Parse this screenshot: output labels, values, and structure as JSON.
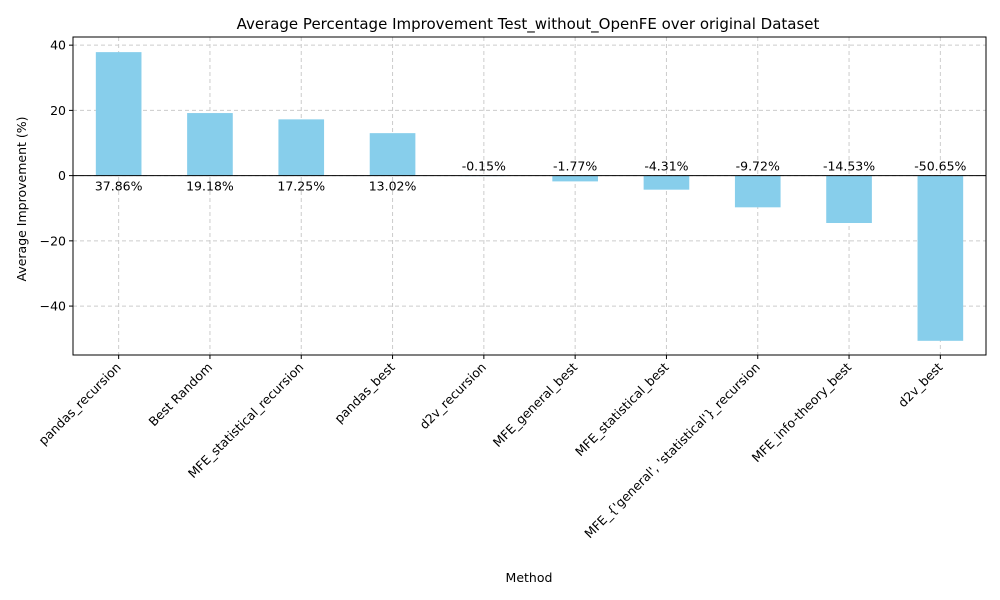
{
  "chart_data": {
    "type": "bar",
    "title": "Average Percentage Improvement Test_without_OpenFE over original Dataset",
    "xlabel": "Method",
    "ylabel": "Average Improvement (%)",
    "categories": [
      "pandas_recursion",
      "Best Random",
      "MFE_statistical_recursion",
      "pandas_best",
      "d2v_recursion",
      "MFE_general_best",
      "MFE_statistical_best",
      "MFE_{'general', 'statistical'}_recursion",
      "MFE_info-theory_best",
      "d2v_best"
    ],
    "values": [
      37.86,
      19.18,
      17.25,
      13.02,
      -0.15,
      -1.77,
      -4.31,
      -9.72,
      -14.53,
      -50.65
    ],
    "data_labels": [
      "37.86%",
      "19.18%",
      "17.25%",
      "13.02%",
      "-0.15%",
      "-1.77%",
      "-4.31%",
      "-9.72%",
      "-14.53%",
      "-50.65%"
    ],
    "yticks": [
      40,
      20,
      0,
      -20,
      -40
    ],
    "ytick_labels": [
      "40",
      "20",
      "0",
      "−20",
      "−40"
    ],
    "ylim": [
      -55,
      42.5
    ],
    "grid": true,
    "bar_color": "#87CEEB"
  }
}
